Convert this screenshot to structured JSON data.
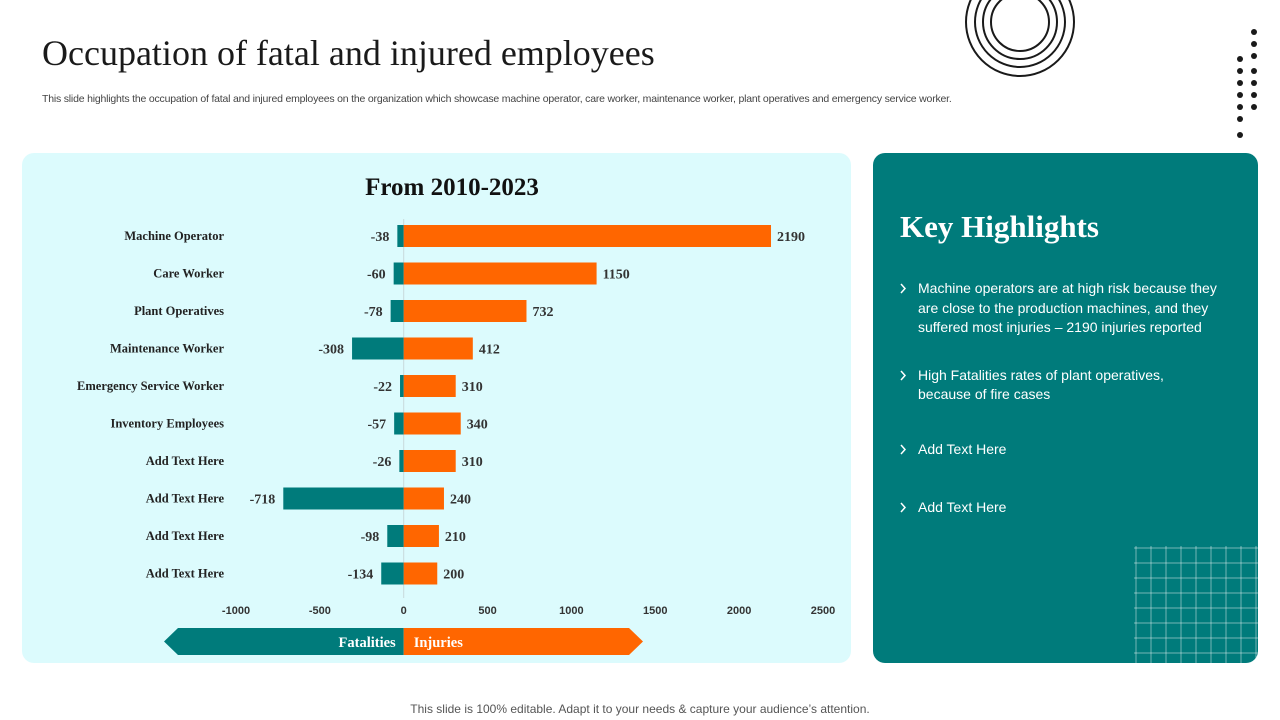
{
  "page": {
    "title": "Occupation of fatal and injured employees",
    "subtitle": "This slide highlights the occupation of fatal and injured employees on the organization which showcase machine operator, care worker, maintenance worker, plant operatives and emergency service worker.",
    "footer": "This slide is 100% editable. Adapt it to your needs & capture your audience’s attention."
  },
  "colors": {
    "fatalities": "#007b7b",
    "injuries": "#ff6600",
    "chart_panel": "#dcfbfd",
    "highlight_panel": "#007b7b"
  },
  "chart_data": {
    "type": "bar",
    "orientation": "horizontal",
    "title": "From 2010-2023",
    "categories": [
      "Machine Operator",
      "Care Worker",
      "Plant Operatives",
      "Maintenance Worker",
      "Emergency Service Worker",
      "Inventory Employees",
      "Add Text Here",
      "Add Text Here",
      "Add Text Here",
      "Add Text Here"
    ],
    "series": [
      {
        "name": "Fatalities",
        "values": [
          -38,
          -60,
          -78,
          -308,
          -22,
          -57,
          -26,
          -718,
          -98,
          -134
        ]
      },
      {
        "name": "Injuries",
        "values": [
          2190,
          1150,
          732,
          412,
          310,
          340,
          310,
          240,
          210,
          200
        ]
      }
    ],
    "xlim": [
      -1000,
      2500
    ],
    "xticks": [
      -1000,
      -500,
      0,
      500,
      1000,
      1500,
      2000,
      2500
    ],
    "legend": {
      "left": "Fatalities",
      "right": "Injuries",
      "placement": "bottom"
    }
  },
  "highlights": {
    "title": "Key Highlights",
    "items": [
      "Machine operators are at high risk because they are close to the production machines, and they suffered most injuries – 2190 injuries reported",
      "High Fatalities rates of plant operatives, because of fire cases",
      "Add Text Here",
      "Add Text Here"
    ]
  }
}
